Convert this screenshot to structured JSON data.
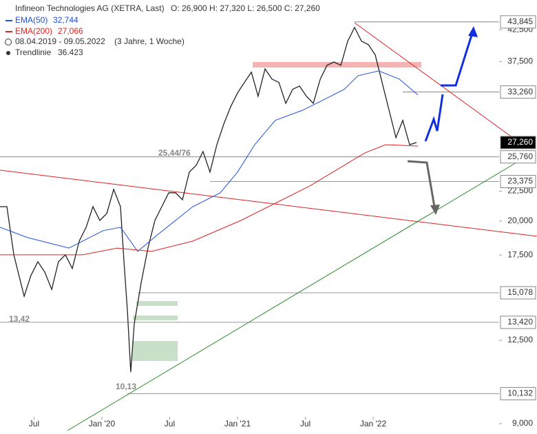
{
  "chart_data": {
    "type": "line",
    "header": {
      "title": "Infineon Technologies AG (XETRA, Last)",
      "ohlc": "O: 26,900  H: 27,320  L: 26,500  C: 27,260",
      "period": "08.04.2019 - 09.05.2022",
      "span": "(3 Jahre, 1 Woche)",
      "trend_name": "Trendlinie",
      "trend_value": "36.423"
    },
    "log_scale": true,
    "xlim": [
      2019.249,
      2023.208
    ],
    "ylim": [
      8760,
      47800
    ],
    "xticks": [
      {
        "value": 2019.5,
        "label": "Jul"
      },
      {
        "value": 2020.0,
        "label": "Jan '20"
      },
      {
        "value": 2020.5,
        "label": "Jul"
      },
      {
        "value": 2021.0,
        "label": "Jan '21"
      },
      {
        "value": 2021.5,
        "label": "Jul"
      },
      {
        "value": 2022.0,
        "label": "Jan '22"
      }
    ],
    "yticks": [
      {
        "value": 9000,
        "label": "9,000"
      },
      {
        "value": 12500,
        "label": "12,500"
      },
      {
        "value": 17500,
        "label": "17,500"
      },
      {
        "value": 20000,
        "label": "20,000"
      },
      {
        "value": 22500,
        "label": "22,500"
      },
      {
        "value": 37500,
        "label": "37,500"
      },
      {
        "value": 42500,
        "label": "42,500"
      }
    ],
    "series": [
      {
        "name": "Infineon Technologies AG",
        "color": "#222222",
        "x": [
          2019.249,
          2019.3,
          2019.351,
          2019.427,
          2019.477,
          2019.528,
          2019.579,
          2019.63,
          2019.68,
          2019.731,
          2019.782,
          2019.833,
          2019.884,
          2019.934,
          2019.985,
          2020.036,
          2020.087,
          2020.137,
          2020.163,
          2020.188,
          2020.213,
          2020.239,
          2020.29,
          2020.34,
          2020.391,
          2020.442,
          2020.493,
          2020.543,
          2020.594,
          2020.645,
          2020.696,
          2020.746,
          2020.797,
          2020.848,
          2020.899,
          2020.95,
          2021.0,
          2021.051,
          2021.102,
          2021.152,
          2021.203,
          2021.254,
          2021.305,
          2021.356,
          2021.406,
          2021.457,
          2021.508,
          2021.559,
          2021.61,
          2021.66,
          2021.711,
          2021.762,
          2021.812,
          2021.863,
          2021.914,
          2021.965,
          2022.015,
          2022.066,
          2022.117,
          2022.168,
          2022.218,
          2022.269,
          2022.32
        ],
        "values": [
          21170,
          21170,
          17510,
          14870,
          16140,
          17040,
          16360,
          15280,
          17040,
          17510,
          16590,
          18480,
          19520,
          21170,
          20050,
          20610,
          22660,
          21170,
          17040,
          14090,
          11030,
          13340,
          15700,
          17980,
          20050,
          21170,
          22360,
          22360,
          21750,
          24260,
          24920,
          26310,
          24260,
          27030,
          29330,
          31400,
          33140,
          34540,
          35970,
          32710,
          36440,
          35000,
          34540,
          31810,
          33610,
          34050,
          32710,
          31810,
          35000,
          36950,
          37440,
          36950,
          40640,
          42900,
          40640,
          40090,
          38500,
          34540,
          30970,
          27790,
          29750,
          27030,
          27260
        ]
      },
      {
        "name": "EMA(50)",
        "legend_value": "32,744",
        "color": "#1f4fe0",
        "x": [
          2019.249,
          2019.452,
          2019.757,
          2020.01,
          2020.137,
          2020.264,
          2020.417,
          2020.67,
          2020.873,
          2021.0,
          2021.127,
          2021.279,
          2021.482,
          2021.635,
          2021.787,
          2021.889,
          2022.041,
          2022.193,
          2022.33
        ],
        "values": [
          19520,
          18740,
          17980,
          19260,
          19520,
          17750,
          19000,
          21170,
          22360,
          24260,
          27030,
          29750,
          30970,
          32260,
          33610,
          35470,
          36150,
          35000,
          32880
        ]
      },
      {
        "name": "EMA(200)",
        "legend_value": "27,066",
        "color": "#e02020",
        "x": [
          2019.249,
          2019.554,
          2019.858,
          2020.112,
          2020.366,
          2020.67,
          2021.025,
          2021.279,
          2021.533,
          2021.787,
          2021.939,
          2022.092,
          2022.33
        ],
        "values": [
          17510,
          17510,
          17510,
          17980,
          17750,
          18480,
          20050,
          21460,
          22970,
          24920,
          26170,
          27030,
          26880
        ]
      }
    ],
    "levels": [
      {
        "value": 43845,
        "label": "43,845"
      },
      {
        "value": 33260,
        "label": "33,260"
      },
      {
        "value": 27260,
        "label": "27,260"
      },
      {
        "value": 25760,
        "label": "25,760"
      },
      {
        "value": 23375,
        "label": "23,375"
      },
      {
        "value": 15078,
        "label": "15,078"
      },
      {
        "value": 13420,
        "label": "13,420"
      },
      {
        "value": 10132,
        "label": "10,132"
      }
    ],
    "annotations": [
      "25,44/76",
      "13,42",
      "10,13"
    ]
  }
}
